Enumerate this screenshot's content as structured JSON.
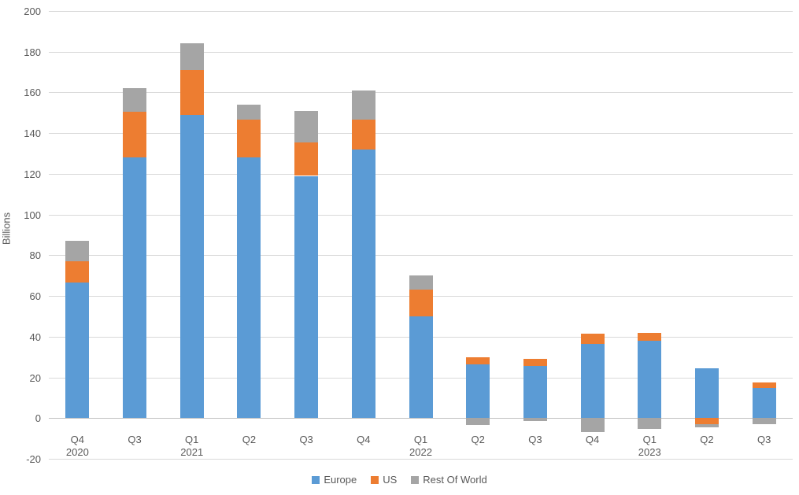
{
  "chart_data": {
    "type": "bar",
    "stacked": true,
    "title": "",
    "ylabel": "Billions",
    "xlabel": "",
    "ylim": [
      -20,
      200
    ],
    "ytick_step": 20,
    "grid": true,
    "legend_position": "bottom",
    "categories": [
      {
        "quarter": "Q4",
        "year": "2020"
      },
      {
        "quarter": "Q3",
        "year": ""
      },
      {
        "quarter": "Q1",
        "year": "2021"
      },
      {
        "quarter": "Q2",
        "year": ""
      },
      {
        "quarter": "Q3",
        "year": ""
      },
      {
        "quarter": "Q4",
        "year": ""
      },
      {
        "quarter": "Q1",
        "year": "2022"
      },
      {
        "quarter": "Q2",
        "year": ""
      },
      {
        "quarter": "Q3",
        "year": ""
      },
      {
        "quarter": "Q4",
        "year": ""
      },
      {
        "quarter": "Q1",
        "year": "2023"
      },
      {
        "quarter": "Q2",
        "year": ""
      },
      {
        "quarter": "Q3",
        "year": ""
      }
    ],
    "series": [
      {
        "name": "Europe",
        "color": "#5B9BD5",
        "values": [
          66.5,
          128,
          149,
          128,
          119,
          132,
          50,
          26.5,
          25.5,
          36.5,
          38,
          24.5,
          15
        ]
      },
      {
        "name": "US",
        "color": "#ED7D31",
        "values": [
          10.5,
          22.5,
          22,
          18.5,
          16.5,
          14.5,
          13,
          3.5,
          3.5,
          5,
          4,
          -3,
          2.5
        ]
      },
      {
        "name": "Rest Of World",
        "color": "#A5A5A5",
        "values": [
          10,
          11.5,
          13,
          7.5,
          15.5,
          14.5,
          7,
          -3.5,
          -1.5,
          -7,
          -5.5,
          -1.5,
          -3
        ]
      }
    ]
  },
  "style": {
    "grid_color": "#d9d9d9",
    "zero_line_color": "#bfbfbf",
    "text_color": "#595959",
    "background": "#ffffff"
  }
}
